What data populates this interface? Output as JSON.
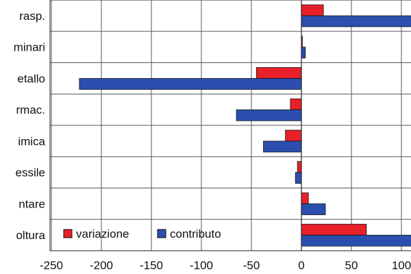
{
  "chart_data": {
    "type": "bar",
    "orientation": "horizontal",
    "categories": [
      "rasp.",
      "minari",
      "etallo",
      "rmac.",
      "imica",
      "essile",
      "ntare",
      "oltura"
    ],
    "series": [
      {
        "name": "variazione",
        "color": "#e8202a",
        "values": [
          22,
          1,
          -45,
          -11,
          -16,
          -4,
          7,
          65
        ]
      },
      {
        "name": "contributo",
        "color": "#2a4fae",
        "values": [
          125,
          4,
          -222,
          -65,
          -38,
          -6,
          24,
          120
        ]
      }
    ],
    "x_ticks": [
      "-250",
      "-200",
      "-150",
      "-100",
      "-50",
      "0",
      "50",
      "100"
    ],
    "xlim": [
      -250,
      110
    ],
    "grid": true,
    "legend_position": "bottom-left"
  }
}
